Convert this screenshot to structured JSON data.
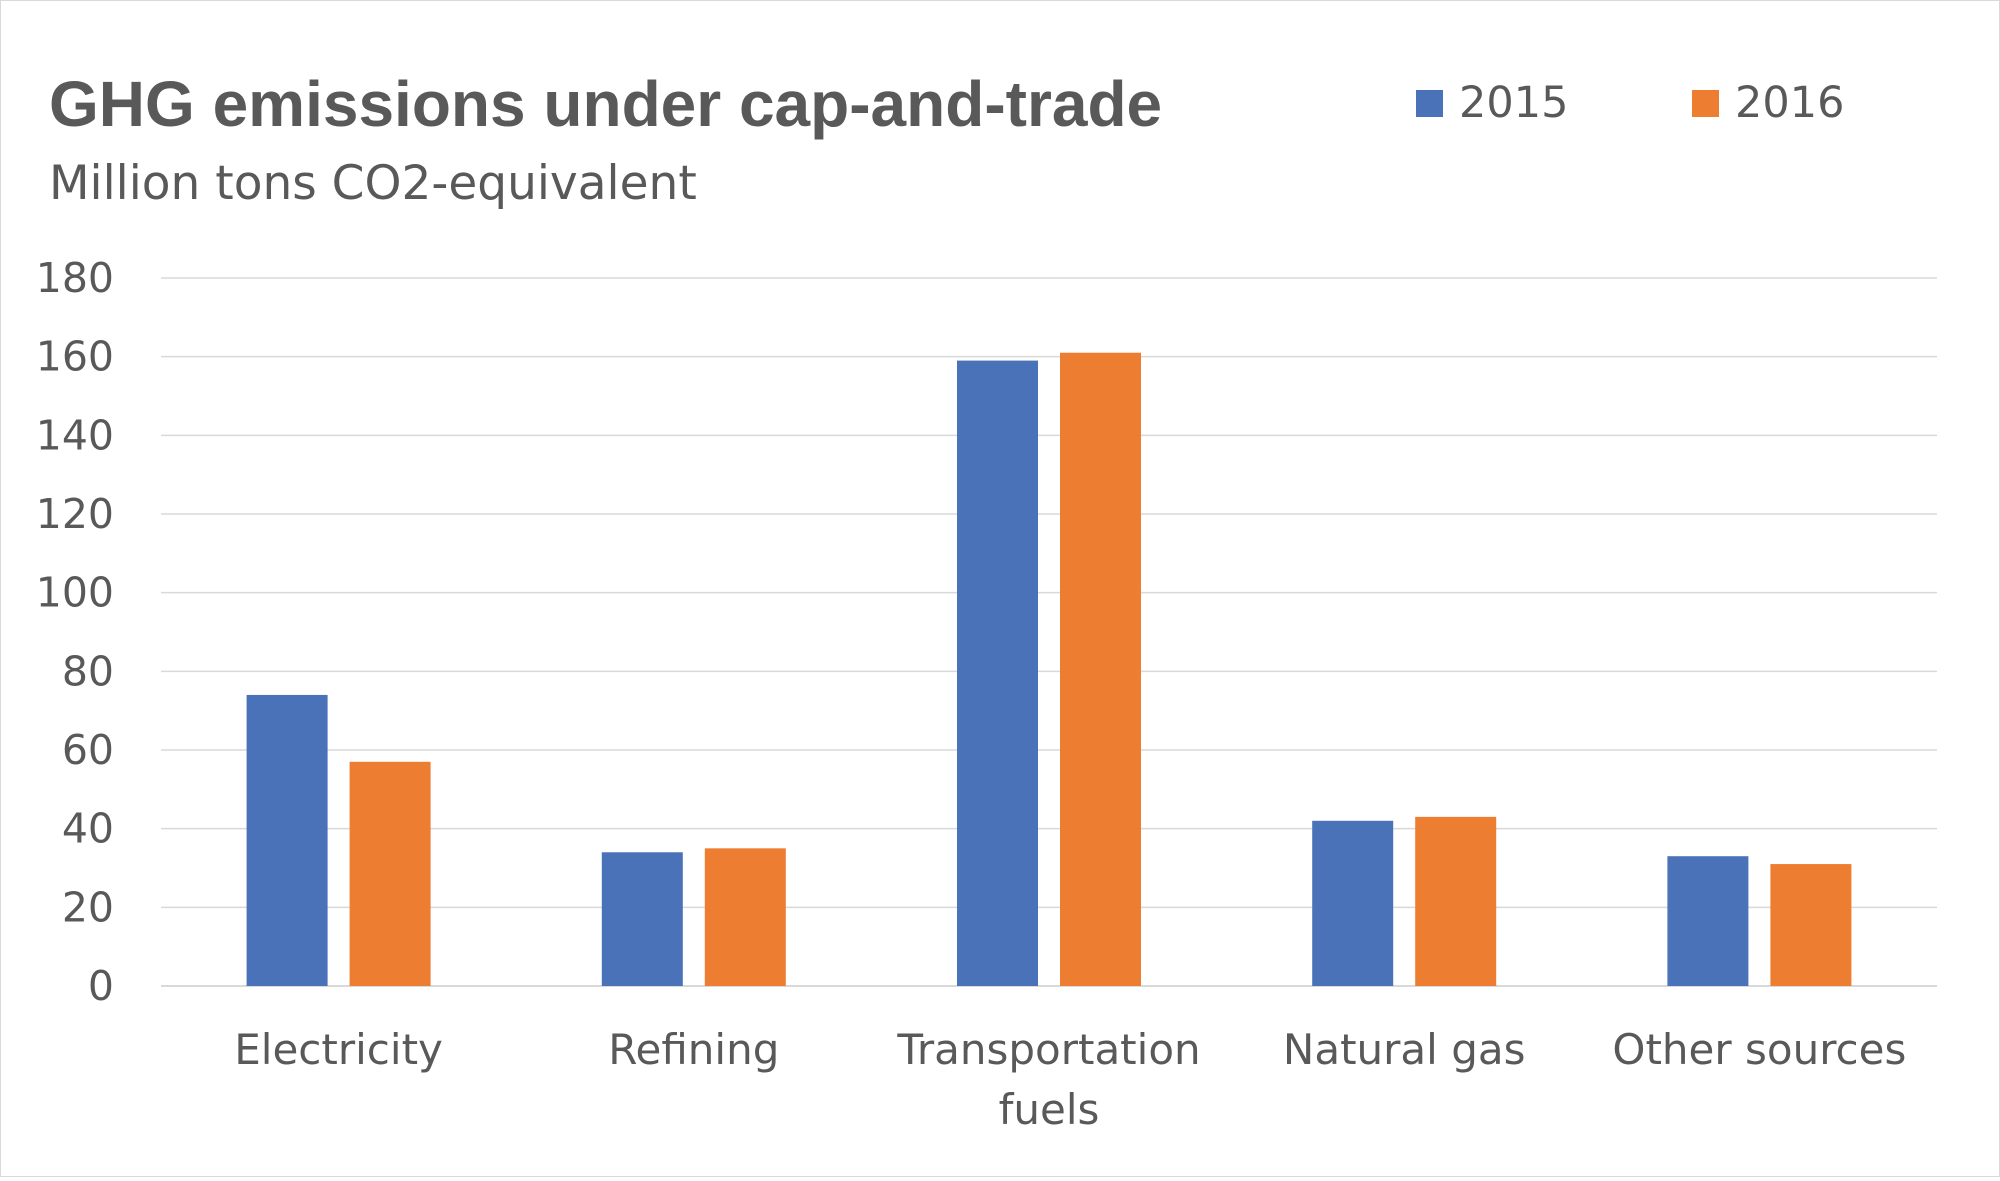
{
  "chart_data": {
    "type": "bar",
    "title": "GHG emissions under cap-and-trade",
    "subtitle": "Million tons CO2-equivalent",
    "categories": [
      "Electricity",
      "Refining",
      "Transportation fuels",
      "Natural gas",
      "Other sources"
    ],
    "category_lines": [
      [
        "Electricity"
      ],
      [
        "Refining"
      ],
      [
        "Transportation",
        "fuels"
      ],
      [
        "Natural gas"
      ],
      [
        "Other sources"
      ]
    ],
    "series": [
      {
        "name": "2015",
        "color": "#4a72b8",
        "values": [
          74,
          34,
          159,
          42,
          33
        ]
      },
      {
        "name": "2016",
        "color": "#ed7d31",
        "values": [
          57,
          35,
          161,
          43,
          31
        ]
      }
    ],
    "y_ticks": [
      0,
      20,
      40,
      60,
      80,
      100,
      120,
      140,
      160,
      180
    ],
    "ylim": [
      0,
      180
    ],
    "grid": true,
    "legend_position": "top-right"
  }
}
